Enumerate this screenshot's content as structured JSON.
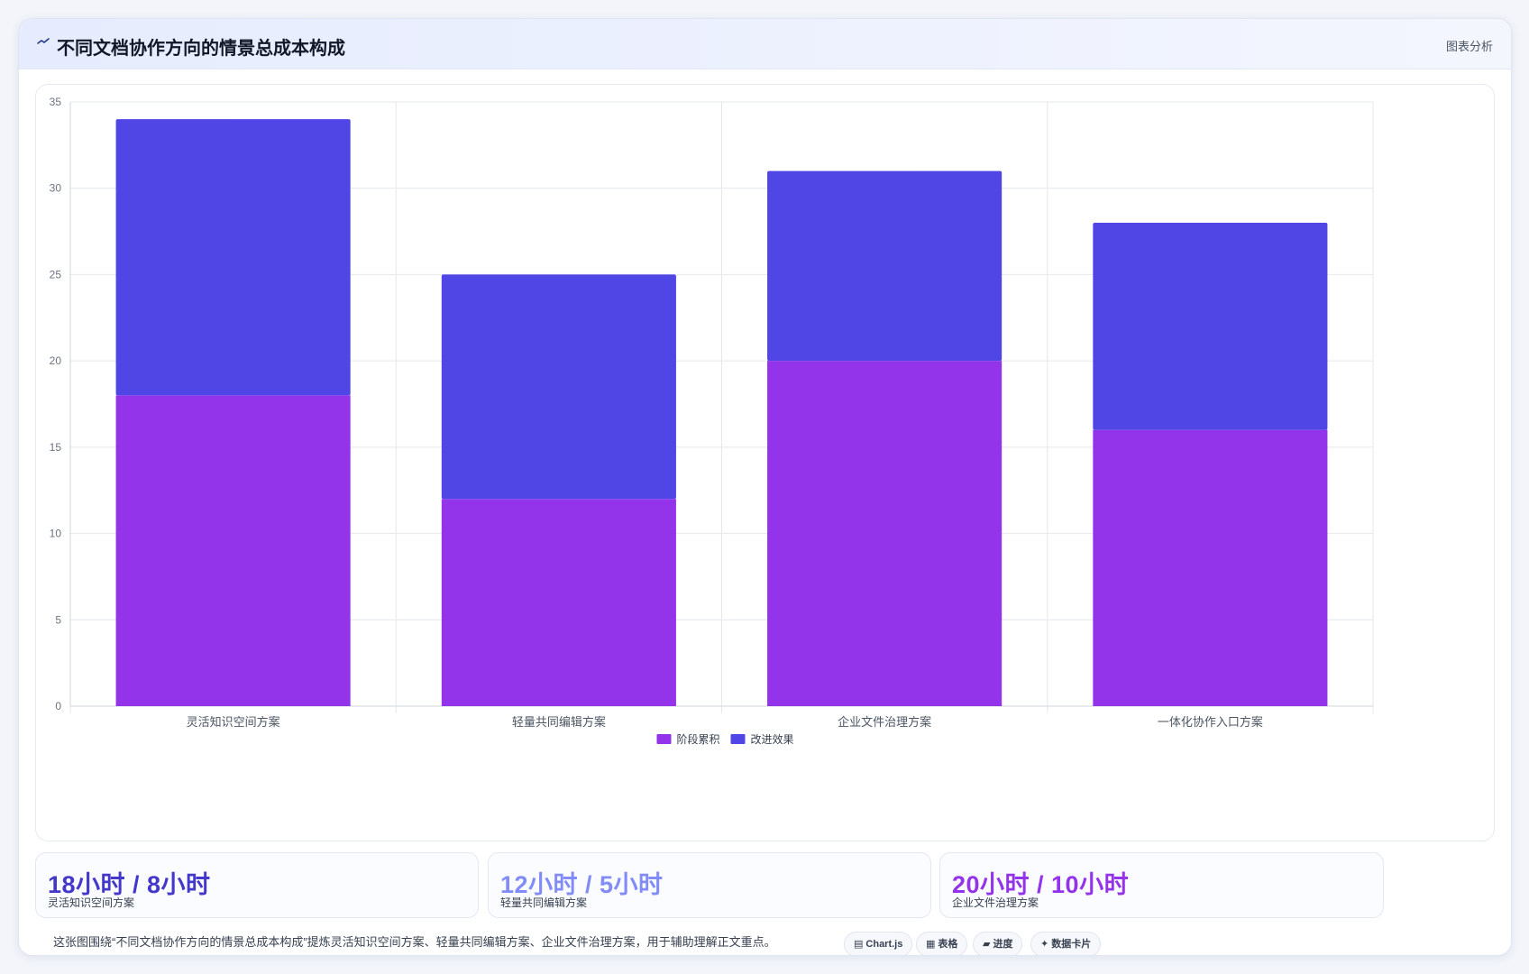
{
  "header": {
    "title": "不同文档协作方向的情景总成本构成",
    "tag": "图表分析"
  },
  "chart_data": {
    "type": "bar",
    "stacked": true,
    "categories": [
      "灵活知识空间方案",
      "轻量共同编辑方案",
      "企业文件治理方案",
      "一体化协作入口方案"
    ],
    "series": [
      {
        "name": "阶段累积",
        "values": [
          18,
          12,
          20,
          16
        ],
        "color": "#9333ea"
      },
      {
        "name": "改进效果",
        "values": [
          16,
          13,
          11,
          12
        ],
        "color": "#4f46e5"
      }
    ],
    "ylim": [
      0,
      35
    ],
    "yticks": [
      0,
      5,
      10,
      15,
      20,
      25,
      30,
      35
    ],
    "grid": true,
    "legend_position": "bottom"
  },
  "stats": [
    {
      "value": "18小时 / 8小时",
      "label": "灵活知识空间方案",
      "color": "#4338ca"
    },
    {
      "value": "12小时 / 5小时",
      "label": "轻量共同编辑方案",
      "color": "#818cf8"
    },
    {
      "value": "20小时 / 10小时",
      "label": "企业文件治理方案",
      "color": "#9333ea"
    }
  ],
  "caption": "这张图围绕“不同文档协作方向的情景总成本构成”提炼灵活知识空间方案、轻量共同编辑方案、企业文件治理方案，用于辅助理解正文重点。",
  "chips": [
    {
      "icon": "▤",
      "label": "Chart.js",
      "icon_name": "chart-icon"
    },
    {
      "icon": "▦",
      "label": "表格",
      "icon_name": "table-icon"
    },
    {
      "icon": "▰",
      "label": "进度",
      "icon_name": "progress-icon"
    },
    {
      "icon": "✦",
      "label": "数据卡片",
      "icon_name": "sparkle-icon"
    }
  ]
}
